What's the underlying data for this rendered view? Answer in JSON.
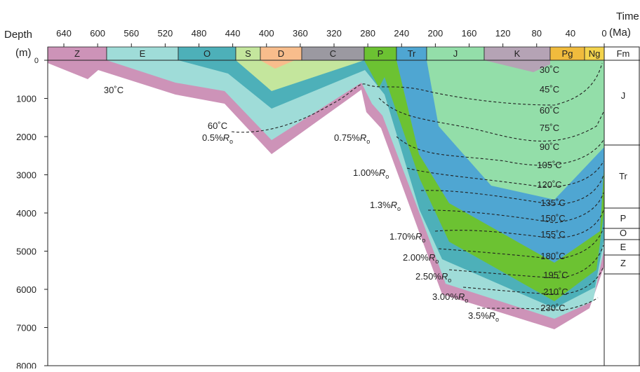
{
  "chart_data": {
    "type": "burial-history",
    "x_label": "Time",
    "x_unit": "(Ma)",
    "y_label": "Depth",
    "y_unit": "(m)",
    "xlim": [
      640,
      0
    ],
    "xticks": [
      640,
      600,
      560,
      520,
      480,
      440,
      400,
      360,
      320,
      280,
      240,
      200,
      160,
      120,
      80,
      40,
      0
    ],
    "ylim": [
      0,
      8000
    ],
    "yticks": [
      0,
      1000,
      2000,
      3000,
      4000,
      5000,
      6000,
      7000,
      8000
    ],
    "periods": [
      "Z",
      "E",
      "O",
      "S",
      "D",
      "C",
      "P",
      "Tr",
      "J",
      "K",
      "Pg",
      "Ng"
    ],
    "period_colors": [
      "#cd93b8",
      "#9fdcd8",
      "#4db0b9",
      "#c4e69d",
      "#f8bd8c",
      "#9b99a1",
      "#6cc232",
      "#4fa6d2",
      "#93dea9",
      "#b5a3b5",
      "#f0bb3d",
      "#f3d34c"
    ],
    "fm_header": "Fm",
    "formations": [
      "J",
      "Tr",
      "P",
      "O",
      "E",
      "Z"
    ],
    "isotherms": [
      "30˚C",
      "45˚C",
      "60˚C",
      "75˚C",
      "90˚C",
      "105˚C",
      "120˚C",
      "135˚C",
      "150˚C",
      "155˚C",
      "180˚C",
      "195˚C",
      "210˚C",
      "230˚C"
    ],
    "left_isotherms": [
      "30˚C",
      "60˚C"
    ],
    "ro_symbol": "R",
    "ro_sub": "o",
    "ro_values": [
      "0.5%",
      "0.75%",
      "1.00%",
      "1.3%",
      "1.70%",
      "2.00%",
      "2.50%",
      "3.00%",
      "3.5%"
    ]
  }
}
